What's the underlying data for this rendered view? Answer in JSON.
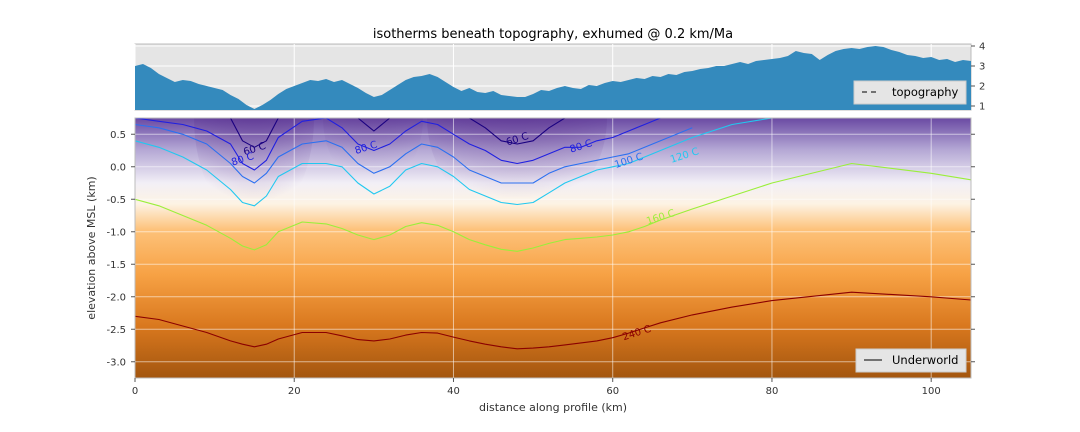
{
  "chart_data": [
    {
      "type": "area",
      "title": "isotherms beneath topography, exhumed @ 0.2 km/Ma",
      "xlim": [
        0,
        105
      ],
      "ylim": [
        0.8,
        4.1
      ],
      "yticks": [
        1,
        2,
        3,
        4
      ],
      "y_axis_side": "right",
      "grid": true,
      "legend": {
        "placement": "lower-right",
        "entries": [
          {
            "label": "topography",
            "style": "dashed",
            "color": "#000000"
          }
        ]
      },
      "fill_color": "#348abd",
      "x": [
        0,
        1,
        2,
        3,
        4,
        5,
        6,
        7,
        8,
        9,
        10,
        11,
        12,
        13,
        14,
        15,
        16,
        17,
        18,
        19,
        20,
        21,
        22,
        23,
        24,
        25,
        26,
        27,
        28,
        29,
        30,
        31,
        32,
        33,
        34,
        35,
        36,
        37,
        38,
        39,
        40,
        41,
        42,
        43,
        44,
        45,
        46,
        47,
        48,
        49,
        50,
        51,
        52,
        53,
        54,
        55,
        56,
        57,
        58,
        59,
        60,
        61,
        62,
        63,
        64,
        65,
        66,
        67,
        68,
        69,
        70,
        71,
        72,
        73,
        74,
        75,
        76,
        77,
        78,
        79,
        80,
        81,
        82,
        83,
        84,
        85,
        86,
        87,
        88,
        89,
        90,
        91,
        92,
        93,
        94,
        95,
        96,
        97,
        98,
        99,
        100,
        101,
        102,
        103,
        104,
        105
      ],
      "elevation_km": [
        3.0,
        3.1,
        2.9,
        2.6,
        2.4,
        2.2,
        2.3,
        2.25,
        2.1,
        2.0,
        1.9,
        1.8,
        1.55,
        1.35,
        1.05,
        0.85,
        1.05,
        1.3,
        1.6,
        1.85,
        2.0,
        2.15,
        2.3,
        2.25,
        2.35,
        2.2,
        2.3,
        2.1,
        1.9,
        1.65,
        1.45,
        1.55,
        1.8,
        2.05,
        2.3,
        2.45,
        2.5,
        2.6,
        2.45,
        2.2,
        1.95,
        1.75,
        1.9,
        1.7,
        1.65,
        1.75,
        1.55,
        1.5,
        1.45,
        1.45,
        1.6,
        1.8,
        1.75,
        1.9,
        2.0,
        1.9,
        1.85,
        2.05,
        2.0,
        2.15,
        2.25,
        2.2,
        2.3,
        2.4,
        2.35,
        2.5,
        2.45,
        2.6,
        2.55,
        2.7,
        2.75,
        2.85,
        2.9,
        3.0,
        3.0,
        3.1,
        3.2,
        3.1,
        3.25,
        3.3,
        3.35,
        3.4,
        3.5,
        3.75,
        3.65,
        3.6,
        3.3,
        3.55,
        3.75,
        3.85,
        3.9,
        3.85,
        3.95,
        4.0,
        3.95,
        3.8,
        3.7,
        3.55,
        3.5,
        3.4,
        3.45,
        3.3,
        3.35,
        3.2,
        3.3,
        3.25
      ]
    },
    {
      "type": "heatmap",
      "xlabel": "distance along profile (km)",
      "ylabel": "elevation above MSL (km)",
      "xlim": [
        0,
        105
      ],
      "ylim": [
        -3.25,
        0.75
      ],
      "xticks": [
        0,
        20,
        40,
        60,
        80,
        100
      ],
      "yticks": [
        0.5,
        0.0,
        -0.5,
        -1.0,
        -1.5,
        -2.0,
        -2.5,
        -3.0
      ],
      "grid": true,
      "colormap": "purple (cold, top) to white to orange-brown (hot, bottom)",
      "legend": {
        "placement": "lower-right",
        "entries": [
          {
            "label": "Underworld",
            "style": "solid",
            "color": "#000000"
          }
        ]
      },
      "series": [
        {
          "label": "60 C",
          "color": "#1a0080",
          "x": [
            0,
            3,
            6,
            9,
            12,
            13.5,
            15,
            16.5,
            18,
            21,
            24,
            26,
            28,
            30,
            32,
            34,
            36,
            38,
            40,
            42,
            44,
            46,
            48,
            50,
            52,
            54,
            56,
            58,
            60,
            62,
            64,
            66,
            70,
            75,
            80,
            90,
            100,
            105
          ],
          "y": [
            null,
            null,
            null,
            null,
            0.75,
            0.4,
            0.3,
            0.4,
            0.75,
            null,
            null,
            null,
            0.75,
            0.55,
            0.75,
            null,
            null,
            null,
            null,
            0.75,
            0.6,
            0.4,
            0.35,
            0.4,
            0.6,
            0.75,
            null,
            null,
            null,
            null,
            null,
            null,
            null,
            null,
            null,
            null,
            null,
            null
          ]
        },
        {
          "label": "80 C",
          "color": "#2020e0",
          "x": [
            0,
            3,
            6,
            9,
            12,
            13.5,
            15,
            16.5,
            18,
            21,
            24,
            26,
            28,
            30,
            32,
            34,
            36,
            38,
            40,
            42,
            44,
            46,
            48,
            50,
            52,
            54,
            56,
            58,
            60,
            62,
            64,
            66,
            70,
            75,
            80,
            90,
            100,
            105
          ],
          "y": [
            0.75,
            0.7,
            0.65,
            0.55,
            0.35,
            0.05,
            -0.05,
            0.1,
            0.45,
            0.7,
            0.75,
            0.6,
            0.35,
            0.25,
            0.35,
            0.55,
            0.7,
            0.65,
            0.5,
            0.35,
            0.25,
            0.1,
            0.05,
            0.1,
            0.2,
            0.3,
            0.3,
            0.4,
            0.45,
            0.55,
            0.65,
            0.75,
            null,
            null,
            null,
            null,
            null,
            null
          ]
        },
        {
          "label": "100 C",
          "color": "#2b70f0",
          "x": [
            0,
            3,
            6,
            9,
            12,
            13.5,
            15,
            16.5,
            18,
            21,
            24,
            26,
            28,
            30,
            32,
            34,
            36,
            38,
            40,
            42,
            44,
            46,
            48,
            50,
            52,
            54,
            56,
            58,
            60,
            62,
            64,
            66,
            70,
            75,
            80,
            90,
            100,
            105
          ],
          "y": [
            0.65,
            0.6,
            0.5,
            0.35,
            0.05,
            -0.15,
            -0.25,
            -0.1,
            0.15,
            0.35,
            0.4,
            0.3,
            0.05,
            -0.1,
            0.0,
            0.2,
            0.35,
            0.3,
            0.15,
            -0.05,
            -0.15,
            -0.25,
            -0.25,
            -0.25,
            -0.1,
            0.0,
            0.05,
            0.1,
            0.15,
            0.2,
            0.3,
            0.4,
            0.6,
            null,
            null,
            null,
            null,
            null
          ]
        },
        {
          "label": "120 C",
          "color": "#21c8f0",
          "x": [
            0,
            3,
            6,
            9,
            12,
            13.5,
            15,
            16.5,
            18,
            21,
            24,
            26,
            28,
            30,
            32,
            34,
            36,
            38,
            40,
            42,
            44,
            46,
            48,
            50,
            52,
            54,
            56,
            58,
            60,
            62,
            64,
            66,
            70,
            75,
            80,
            90,
            100,
            105
          ],
          "y": [
            0.4,
            0.3,
            0.15,
            -0.05,
            -0.35,
            -0.55,
            -0.6,
            -0.45,
            -0.15,
            0.05,
            0.05,
            0.0,
            -0.25,
            -0.42,
            -0.3,
            -0.05,
            0.05,
            0.0,
            -0.15,
            -0.35,
            -0.45,
            -0.55,
            -0.58,
            -0.55,
            -0.4,
            -0.25,
            -0.15,
            -0.05,
            0.0,
            0.05,
            0.15,
            0.25,
            0.45,
            0.65,
            0.75,
            null,
            null,
            null
          ]
        },
        {
          "label": "160 C",
          "color": "#9aef3a",
          "x": [
            0,
            3,
            6,
            9,
            12,
            13.5,
            15,
            16.5,
            18,
            21,
            24,
            26,
            28,
            30,
            32,
            34,
            36,
            38,
            40,
            42,
            44,
            46,
            48,
            50,
            52,
            54,
            56,
            58,
            60,
            62,
            64,
            66,
            70,
            75,
            80,
            90,
            100,
            105
          ],
          "y": [
            -0.5,
            -0.6,
            -0.75,
            -0.9,
            -1.1,
            -1.22,
            -1.28,
            -1.2,
            -1.0,
            -0.85,
            -0.88,
            -0.95,
            -1.05,
            -1.12,
            -1.05,
            -0.92,
            -0.86,
            -0.9,
            -1.0,
            -1.12,
            -1.2,
            -1.27,
            -1.3,
            -1.25,
            -1.18,
            -1.12,
            -1.1,
            -1.08,
            -1.05,
            -1.0,
            -0.92,
            -0.82,
            -0.65,
            -0.45,
            -0.25,
            0.05,
            -0.1,
            -0.2
          ]
        },
        {
          "label": "240 C",
          "color": "#8b0000",
          "x": [
            0,
            3,
            6,
            9,
            12,
            13.5,
            15,
            16.5,
            18,
            21,
            24,
            26,
            28,
            30,
            32,
            34,
            36,
            38,
            40,
            42,
            44,
            46,
            48,
            50,
            52,
            54,
            56,
            58,
            60,
            62,
            64,
            66,
            70,
            75,
            80,
            90,
            100,
            105
          ],
          "y": [
            -2.3,
            -2.35,
            -2.45,
            -2.55,
            -2.68,
            -2.73,
            -2.77,
            -2.73,
            -2.65,
            -2.55,
            -2.55,
            -2.6,
            -2.66,
            -2.68,
            -2.65,
            -2.59,
            -2.55,
            -2.56,
            -2.62,
            -2.68,
            -2.73,
            -2.77,
            -2.8,
            -2.79,
            -2.77,
            -2.74,
            -2.71,
            -2.68,
            -2.63,
            -2.56,
            -2.48,
            -2.4,
            -2.28,
            -2.16,
            -2.06,
            -1.93,
            -2.0,
            -2.05
          ]
        }
      ],
      "contour_labels": [
        {
          "text": "60 C",
          "x": 15,
          "y": 0.28
        },
        {
          "text": "80 C",
          "x": 13.5,
          "y": 0.12
        },
        {
          "text": "80 C",
          "x": 29,
          "y": 0.3
        },
        {
          "text": "60 C",
          "x": 48,
          "y": 0.43
        },
        {
          "text": "80 C",
          "x": 56,
          "y": 0.32
        },
        {
          "text": "100 C",
          "x": 62,
          "y": 0.1
        },
        {
          "text": "120 C",
          "x": 69,
          "y": 0.18
        },
        {
          "text": "160 C",
          "x": 66,
          "y": -0.77
        },
        {
          "text": "240 C",
          "x": 63,
          "y": -2.55
        }
      ]
    }
  ]
}
